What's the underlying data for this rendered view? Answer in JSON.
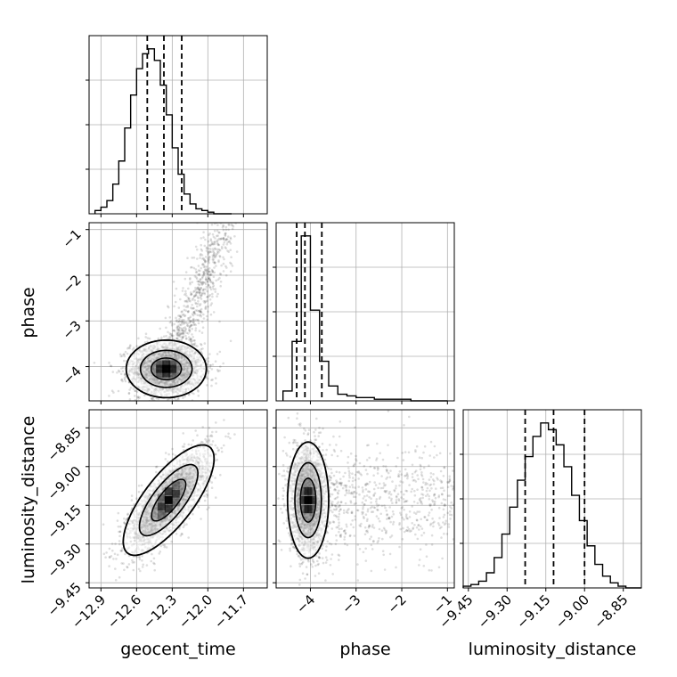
{
  "chart_data": {
    "type": "corner",
    "grid": true,
    "parameters": [
      "geocent_time",
      "phase",
      "luminosity_distance"
    ],
    "axes": {
      "geocent_time": {
        "label": "geocent_time",
        "range": [
          -13.0,
          -11.5
        ],
        "ticks": [
          -12.9,
          -12.6,
          -12.3,
          -12.0,
          -11.7
        ],
        "tick_labels": [
          "−12.9",
          "−12.6",
          "−12.3",
          "−12.0",
          "−11.7"
        ]
      },
      "phase": {
        "label": "phase",
        "range": [
          -4.75,
          -0.85
        ],
        "ticks": [
          -4,
          -3,
          -2,
          -1
        ],
        "tick_labels": [
          "−4",
          "−3",
          "−2",
          "−1"
        ]
      },
      "luminosity_distance": {
        "label": "luminosity_distance",
        "range": [
          -9.47,
          -8.78
        ],
        "ticks": [
          -9.45,
          -9.3,
          -9.15,
          -9.0,
          -8.85
        ],
        "tick_labels": [
          "−9.45",
          "−9.30",
          "−9.15",
          "−9.00",
          "−8.85"
        ]
      }
    },
    "histograms": [
      {
        "parameter": "geocent_time",
        "bin_edges": [
          -12.95,
          -12.9,
          -12.85,
          -12.8,
          -12.75,
          -12.7,
          -12.65,
          -12.6,
          -12.55,
          -12.5,
          -12.45,
          -12.4,
          -12.35,
          -12.3,
          -12.25,
          -12.2,
          -12.15,
          -12.1,
          -12.05,
          -12.0,
          -11.95,
          -11.9,
          -11.85,
          -11.8
        ],
        "counts": [
          2,
          4,
          8,
          18,
          32,
          52,
          72,
          88,
          97,
          100,
          93,
          78,
          60,
          40,
          24,
          12,
          6,
          3,
          2,
          1,
          0,
          0,
          0
        ],
        "quantiles": [
          -12.51,
          -12.37,
          -12.22
        ]
      },
      {
        "parameter": "phase",
        "bin_edges": [
          -4.6,
          -4.4,
          -4.2,
          -4.0,
          -3.8,
          -3.6,
          -3.4,
          -3.2,
          -3.0,
          -2.8,
          -2.6,
          -2.4,
          -2.2,
          -2.0,
          -1.8,
          -1.6,
          -1.4,
          -1.2,
          -1.0
        ],
        "counts": [
          6,
          36,
          100,
          55,
          24,
          9,
          4,
          3,
          2,
          2,
          1,
          1,
          1,
          1,
          0,
          0,
          0,
          0
        ],
        "quantiles": [
          -4.3,
          -4.12,
          -3.75
        ]
      },
      {
        "parameter": "luminosity_distance",
        "bin_edges": [
          -9.47,
          -9.44,
          -9.41,
          -9.38,
          -9.35,
          -9.32,
          -9.29,
          -9.26,
          -9.23,
          -9.2,
          -9.17,
          -9.14,
          -9.11,
          -9.08,
          -9.05,
          -9.02,
          -8.99,
          -8.96,
          -8.93,
          -8.9,
          -8.87,
          -8.84,
          -8.81,
          -8.78
        ],
        "counts": [
          1,
          2,
          4,
          9,
          18,
          32,
          48,
          64,
          78,
          90,
          98,
          94,
          85,
          72,
          55,
          40,
          25,
          14,
          7,
          3,
          1,
          0,
          0
        ],
        "quantiles": [
          -9.23,
          -9.12,
          -9.0
        ]
      }
    ],
    "joint_panels": [
      {
        "x": "geocent_time",
        "y": "phase",
        "mean": [
          -12.35,
          -4.05
        ],
        "std": [
          0.15,
          0.28
        ],
        "tail_to_upper_right": true
      },
      {
        "x": "geocent_time",
        "y": "luminosity_distance",
        "mean": [
          -12.33,
          -9.13
        ],
        "std": [
          0.17,
          0.095
        ],
        "correlation": 0.75
      },
      {
        "x": "phase",
        "y": "luminosity_distance",
        "mean": [
          -4.05,
          -9.13
        ],
        "std": [
          0.2,
          0.1
        ],
        "tail_to_right": true
      }
    ]
  }
}
